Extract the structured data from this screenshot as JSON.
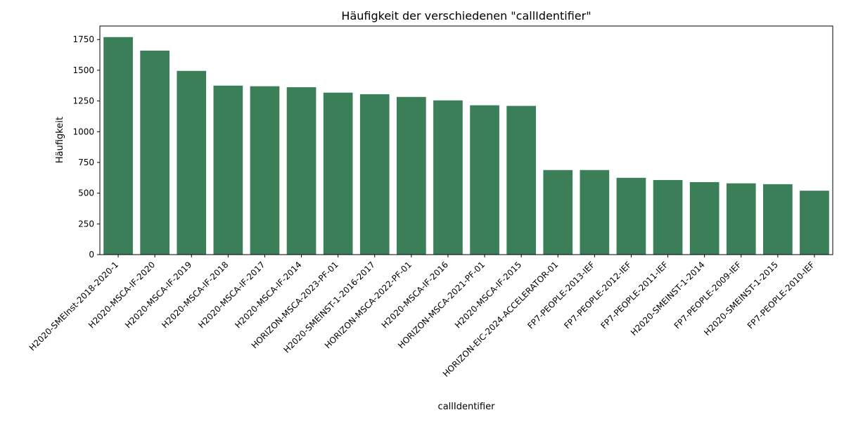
{
  "chart_data": {
    "type": "bar",
    "title": "Häufigkeit der verschiedenen \"callIdentifier\"",
    "xlabel": "callIdentifier",
    "ylabel": "Häufigkeit",
    "categories": [
      "H2020-SMEInst-2018-2020-1",
      "H2020-MSCA-IF-2020",
      "H2020-MSCA-IF-2019",
      "H2020-MSCA-IF-2018",
      "H2020-MSCA-IF-2017",
      "H2020-MSCA-IF-2014",
      "HORIZON-MSCA-2023-PF-01",
      "H2020-SMEINST-1-2016-2017",
      "HORIZON-MSCA-2022-PF-01",
      "H2020-MSCA-IF-2016",
      "HORIZON-MSCA-2021-PF-01",
      "H2020-MSCA-IF-2015",
      "HORIZON-EIC-2024-ACCELERATOR-01",
      "FP7-PEOPLE-2013-IEF",
      "FP7-PEOPLE-2012-IEF",
      "FP7-PEOPLE-2011-IEF",
      "H2020-SMEINST-1-2014",
      "FP7-PEOPLE-2009-IEF",
      "H2020-SMEINST-1-2015",
      "FP7-PEOPLE-2010-IEF"
    ],
    "values": [
      1770,
      1660,
      1495,
      1375,
      1370,
      1362,
      1318,
      1305,
      1283,
      1255,
      1215,
      1210,
      688,
      688,
      625,
      607,
      590,
      580,
      573,
      520
    ],
    "yticks": [
      "0",
      "250",
      "500",
      "750",
      "1000",
      "1250",
      "1500",
      "1750"
    ],
    "ylim": [
      0,
      1860
    ],
    "grid": false,
    "bar_color": "#3a7f58"
  }
}
